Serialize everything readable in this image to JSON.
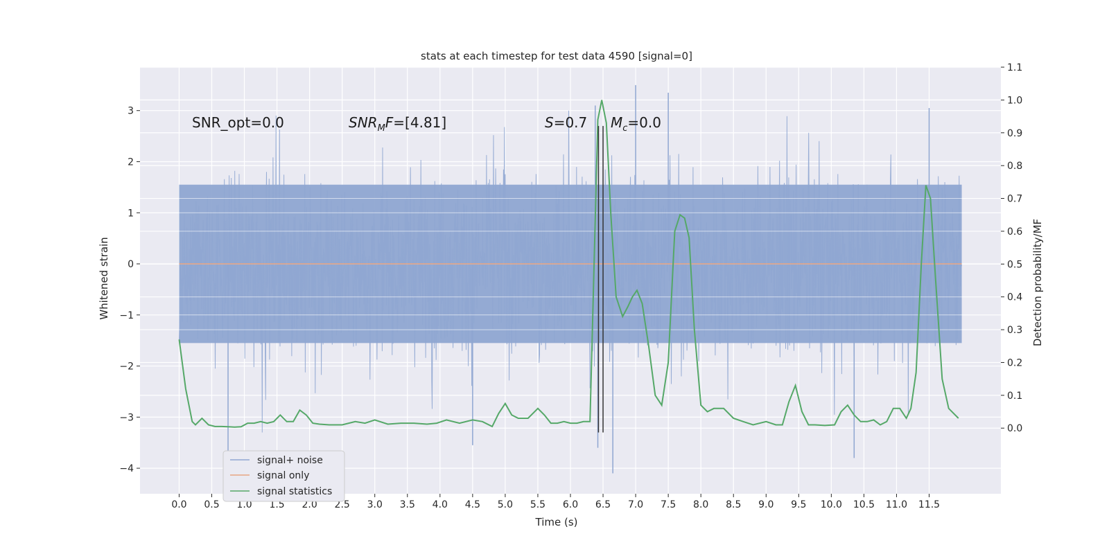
{
  "chart_data": {
    "type": "line",
    "title": "stats at each timestep for test data 4590 [signal=0]",
    "xlabel": "Time (s)",
    "ylabel_left": "Whitened strain",
    "ylabel_right": "Detection probability/MF",
    "xlim": [
      -0.6,
      12.6
    ],
    "ylim_left": [
      -4.5,
      3.85
    ],
    "ylim_right": [
      -0.2,
      1.1
    ],
    "x_ticks": [
      0.0,
      0.5,
      1.0,
      1.5,
      2.0,
      2.5,
      3.0,
      3.5,
      4.0,
      4.5,
      5.0,
      5.5,
      6.0,
      6.5,
      7.0,
      7.5,
      8.0,
      8.5,
      9.0,
      9.5,
      10.0,
      10.5,
      11.0,
      11.5
    ],
    "x_tick_labels": [
      "0.0",
      "0.5",
      "1.0",
      "1.5",
      "2.0",
      "2.5",
      "3.0",
      "3.5",
      "4.0",
      "4.5",
      "5.0",
      "5.5",
      "6.0",
      "6.5",
      "7.0",
      "7.5",
      "8.0",
      "8.5",
      "9.0",
      "9.5",
      "10.0",
      "10.5",
      "11.0",
      "11.5"
    ],
    "y_left_ticks": [
      -4,
      -3,
      -2,
      -1,
      0,
      1,
      2,
      3
    ],
    "y_left_tick_labels": [
      "−4",
      "−3",
      "−2",
      "−1",
      "0",
      "1",
      "2",
      "3"
    ],
    "y_right_ticks": [
      0.0,
      0.1,
      0.2,
      0.3,
      0.4,
      0.5,
      0.6,
      0.7,
      0.8,
      0.9,
      1.0,
      1.1
    ],
    "y_right_tick_labels": [
      "0.0",
      "0.1",
      "0.2",
      "0.3",
      "0.4",
      "0.5",
      "0.6",
      "0.7",
      "0.8",
      "0.9",
      "1.0",
      "1.1"
    ],
    "grid": true,
    "legend_position": "lower-left",
    "series": [
      {
        "name": "signal+ noise",
        "axis": "left",
        "color": "#8fa6d1",
        "x_range": [
          0.0,
          12.0
        ],
        "typical_range": [
          -1.55,
          1.55
        ],
        "peaks": [
          {
            "x": 0.75,
            "y": -3.7
          },
          {
            "x": 4.5,
            "y": -3.55
          },
          {
            "x": 6.38,
            "y": 3.1
          },
          {
            "x": 6.42,
            "y": -3.6
          },
          {
            "x": 6.65,
            "y": -4.1
          },
          {
            "x": 7.0,
            "y": 3.5
          },
          {
            "x": 7.5,
            "y": 3.35
          },
          {
            "x": 10.35,
            "y": -3.8
          },
          {
            "x": 11.5,
            "y": 3.05
          }
        ]
      },
      {
        "name": "signal only",
        "axis": "left",
        "color": "#e8a482",
        "x": [
          0.0,
          12.0
        ],
        "y": [
          0.0,
          0.0
        ]
      },
      {
        "name": "signal statistics",
        "axis": "right",
        "color": "#55a868",
        "x": [
          0.0,
          0.1,
          0.2,
          0.25,
          0.35,
          0.45,
          0.55,
          0.65,
          0.75,
          0.85,
          0.95,
          1.05,
          1.15,
          1.25,
          1.35,
          1.45,
          1.55,
          1.65,
          1.75,
          1.85,
          1.95,
          2.05,
          2.15,
          2.3,
          2.5,
          2.7,
          2.85,
          3.0,
          3.2,
          3.4,
          3.6,
          3.8,
          3.95,
          4.1,
          4.3,
          4.5,
          4.65,
          4.8,
          4.9,
          5.0,
          5.1,
          5.2,
          5.35,
          5.5,
          5.6,
          5.7,
          5.8,
          5.9,
          6.0,
          6.1,
          6.2,
          6.3,
          6.35,
          6.42,
          6.48,
          6.55,
          6.62,
          6.7,
          6.8,
          6.88,
          6.95,
          7.02,
          7.1,
          7.2,
          7.3,
          7.4,
          7.5,
          7.6,
          7.68,
          7.75,
          7.82,
          7.9,
          8.0,
          8.1,
          8.2,
          8.35,
          8.5,
          8.65,
          8.8,
          9.0,
          9.15,
          9.25,
          9.35,
          9.45,
          9.55,
          9.65,
          9.75,
          9.9,
          10.05,
          10.15,
          10.25,
          10.35,
          10.45,
          10.55,
          10.65,
          10.75,
          10.85,
          10.95,
          11.05,
          11.15,
          11.22,
          11.3,
          11.38,
          11.45,
          11.52,
          11.6,
          11.7,
          11.8,
          11.95
        ],
        "y": [
          0.27,
          0.12,
          0.02,
          0.01,
          0.03,
          0.01,
          0.005,
          0.005,
          0.004,
          0.003,
          0.004,
          0.015,
          0.015,
          0.02,
          0.015,
          0.02,
          0.04,
          0.02,
          0.02,
          0.055,
          0.04,
          0.015,
          0.012,
          0.01,
          0.01,
          0.02,
          0.015,
          0.025,
          0.012,
          0.015,
          0.015,
          0.012,
          0.015,
          0.025,
          0.015,
          0.025,
          0.02,
          0.005,
          0.045,
          0.075,
          0.04,
          0.03,
          0.03,
          0.06,
          0.04,
          0.015,
          0.015,
          0.02,
          0.015,
          0.015,
          0.02,
          0.02,
          0.4,
          0.94,
          1.0,
          0.93,
          0.65,
          0.4,
          0.34,
          0.37,
          0.4,
          0.42,
          0.38,
          0.25,
          0.1,
          0.07,
          0.2,
          0.6,
          0.65,
          0.64,
          0.58,
          0.3,
          0.07,
          0.05,
          0.06,
          0.06,
          0.03,
          0.02,
          0.01,
          0.02,
          0.01,
          0.01,
          0.08,
          0.13,
          0.05,
          0.01,
          0.01,
          0.008,
          0.01,
          0.05,
          0.07,
          0.04,
          0.02,
          0.02,
          0.025,
          0.01,
          0.02,
          0.06,
          0.06,
          0.03,
          0.06,
          0.17,
          0.5,
          0.74,
          0.7,
          0.45,
          0.15,
          0.06,
          0.03
        ]
      }
    ],
    "vertical_lines": [
      {
        "x": 6.43,
        "y_from": -3.3,
        "y_to": 2.7,
        "color": "#333333"
      },
      {
        "x": 6.5,
        "y_from": -3.3,
        "y_to": 2.7,
        "color": "#333333"
      }
    ],
    "annotations": {
      "snr_opt": "SNR_opt=0.0",
      "snr_mf_label": "SNR",
      "snr_mf_sub": "M",
      "snr_mf_rest": "F=[4.81]",
      "s_label": "S",
      "s_rest": "=0.7",
      "mc_label": "M",
      "mc_sub": "c",
      "mc_rest": "=0.0"
    },
    "colors": {
      "plot_background": "#eaeaf2",
      "grid": "#ffffff",
      "text": "#262626"
    }
  }
}
